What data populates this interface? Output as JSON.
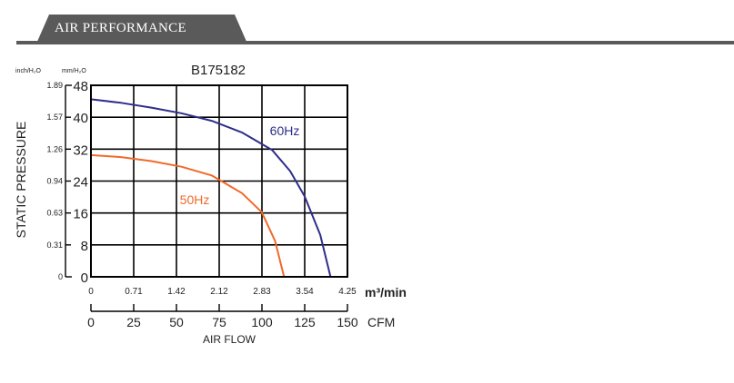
{
  "section_header": {
    "title": "AIR PERFORMANCE"
  },
  "colors": {
    "header_bg": "#5a5a5a",
    "series_60hz": "#2e2e8c",
    "series_50hz": "#f06a2a"
  },
  "chart_data": {
    "type": "line",
    "title": "B175182",
    "ylabel": "STATIC PRESSURE",
    "xlabel": "AIR FLOW",
    "y_unit_left": "inch/H₂O",
    "y_unit_right": "mm/H₂O",
    "x_unit_top": "m³/min",
    "x_unit_bottom": "CFM",
    "ylim": [
      0,
      48
    ],
    "xlim": [
      0,
      4.25
    ],
    "grid": true,
    "y_ticks_mm": [
      "0",
      "8",
      "16",
      "24",
      "32",
      "40",
      "48"
    ],
    "y_ticks_inch": [
      "0",
      "0.31",
      "0.63",
      "0.94",
      "1.26",
      "1.57",
      "1.89"
    ],
    "x_ticks_m3": [
      "0",
      "0.71",
      "1.42",
      "2.12",
      "2.83",
      "3.54",
      "4.25"
    ],
    "x_ticks_cfm": [
      "0",
      "25",
      "50",
      "75",
      "100",
      "125",
      "150"
    ],
    "series": [
      {
        "name": "60Hz",
        "x": [
          0,
          0.5,
          1.0,
          1.5,
          2.0,
          2.5,
          3.0,
          3.3,
          3.54,
          3.8,
          3.97
        ],
        "y": [
          44.5,
          43.6,
          42.4,
          41.0,
          39.1,
          36.2,
          31.8,
          26.5,
          20.2,
          10.5,
          0
        ]
      },
      {
        "name": "50Hz",
        "x": [
          0,
          0.5,
          1.0,
          1.5,
          2.0,
          2.5,
          2.83,
          3.05,
          3.2
        ],
        "y": [
          30.5,
          30.0,
          29.0,
          27.6,
          25.4,
          21.0,
          16.2,
          9.0,
          0
        ]
      }
    ]
  }
}
